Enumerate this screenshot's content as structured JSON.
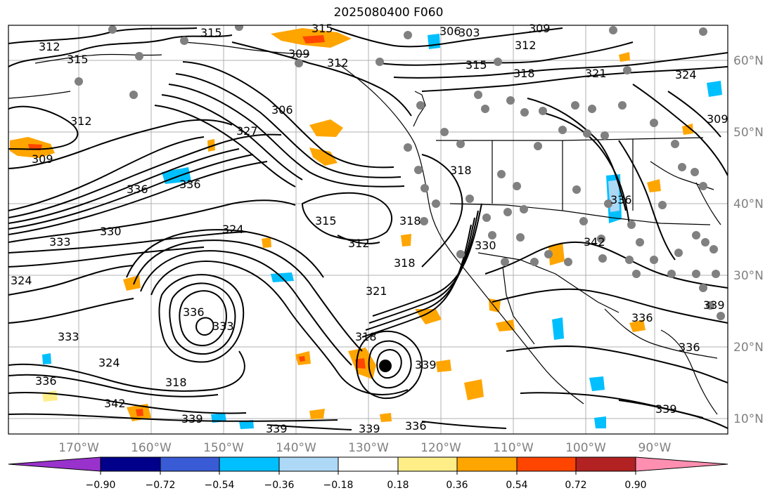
{
  "title": "2025080400 F060",
  "map": {
    "lat_labels": [
      "60°N",
      "50°N",
      "40°N",
      "30°N",
      "20°N",
      "10°N"
    ],
    "lon_labels": [
      "170°W",
      "160°W",
      "150°W",
      "140°W",
      "130°W",
      "120°W",
      "110°W",
      "100°W",
      "90°W"
    ],
    "contour_labels": [
      "312",
      "315",
      "315",
      "309",
      "312",
      "315",
      "306",
      "303",
      "309",
      "312",
      "315",
      "318",
      "321",
      "324",
      "312",
      "309",
      "306",
      "327",
      "318",
      "336",
      "336",
      "315",
      "324",
      "330",
      "333",
      "312",
      "318",
      "321",
      "324",
      "336",
      "333",
      "333",
      "336",
      "324",
      "318",
      "339",
      "342",
      "339",
      "339",
      "339",
      "336",
      "318",
      "339",
      "336",
      "336",
      "339",
      "336",
      "342",
      "330",
      "318",
      "309"
    ],
    "colors": {
      "contour": "#000000",
      "coast": "#000000",
      "grid": "#b0b0b0",
      "station_marker": "#808080",
      "positive_fill": [
        "#ffee88",
        "#ffa500",
        "#ff4500"
      ],
      "negative_fill": [
        "#add8f6",
        "#00bfff"
      ]
    }
  },
  "colorbar": {
    "tick_labels": [
      "−0.90",
      "−0.72",
      "−0.54",
      "−0.36",
      "−0.18",
      "0.18",
      "0.36",
      "0.54",
      "0.72",
      "0.90"
    ],
    "colors": [
      "#9932cc",
      "#00008b",
      "#3a5bd6",
      "#00bfff",
      "#add8f6",
      "#ffffff",
      "#ffee88",
      "#ffa500",
      "#ff4500",
      "#b22222",
      "#ff8fb0"
    ]
  }
}
